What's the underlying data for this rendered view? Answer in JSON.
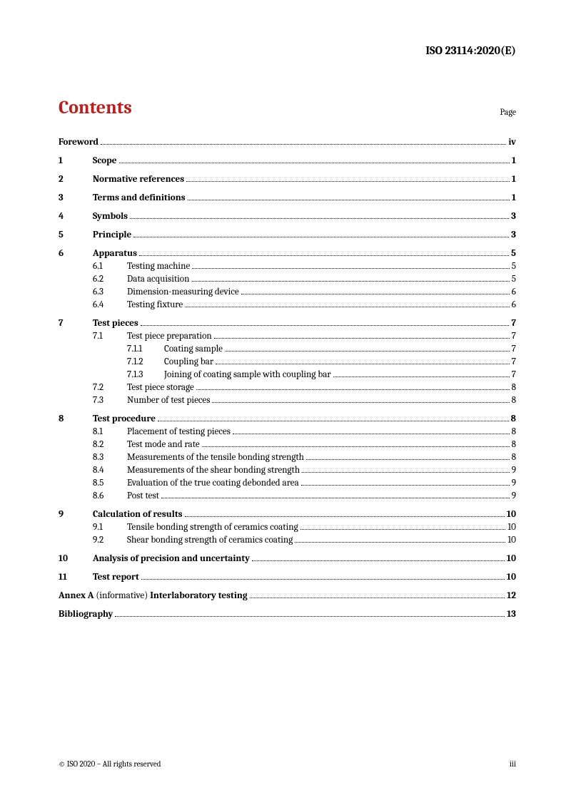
{
  "doc_id": "ISO 23114:2020(E)",
  "title": "Contents",
  "page_label": "Page",
  "footer_left": "© ISO 2020 – All rights reserved",
  "footer_right": "iii",
  "colors": {
    "heading": "#b22222",
    "text": "#000000",
    "background": "#ffffff",
    "leader": "#000000"
  },
  "typography": {
    "title_fontsize": 26,
    "body_fontsize": 13.2,
    "footer_fontsize": 11,
    "docid_fontsize": 16,
    "font_family": "Cambria, Georgia, serif"
  },
  "toc": [
    {
      "level": 0,
      "num": "",
      "title": "Foreword",
      "title_bold": true,
      "page": "iv",
      "page_bold": true,
      "gap_after": true
    },
    {
      "level": 1,
      "num": "1",
      "title": "Scope",
      "title_bold": true,
      "page": "1",
      "page_bold": true,
      "gap_after": true
    },
    {
      "level": 1,
      "num": "2",
      "title": "Normative references",
      "title_bold": true,
      "page": "1",
      "page_bold": true,
      "gap_after": true
    },
    {
      "level": 1,
      "num": "3",
      "title": "Terms and definitions",
      "title_bold": true,
      "page": "1",
      "page_bold": true,
      "gap_after": true
    },
    {
      "level": 1,
      "num": "4",
      "title": "Symbols",
      "title_bold": true,
      "page": "3",
      "page_bold": true,
      "gap_after": true
    },
    {
      "level": 1,
      "num": "5",
      "title": "Principle",
      "title_bold": true,
      "page": "3",
      "page_bold": true,
      "gap_after": true
    },
    {
      "level": 1,
      "num": "6",
      "title": "Apparatus",
      "title_bold": true,
      "page": "5",
      "page_bold": true
    },
    {
      "level": 2,
      "num": "6.1",
      "title": "Testing machine",
      "page": "5"
    },
    {
      "level": 2,
      "num": "6.2",
      "title": "Data acquisition",
      "page": "5"
    },
    {
      "level": 2,
      "num": "6.3",
      "title": "Dimension-measuring device",
      "page": "6"
    },
    {
      "level": 2,
      "num": "6.4",
      "title": "Testing fixture",
      "page": "6",
      "gap_after": true
    },
    {
      "level": 1,
      "num": "7",
      "title": "Test pieces",
      "title_bold": true,
      "page": "7",
      "page_bold": true
    },
    {
      "level": 2,
      "num": "7.1",
      "title": "Test piece preparation",
      "page": "7"
    },
    {
      "level": 3,
      "num": "7.1.1",
      "title": "Coating sample",
      "page": "7"
    },
    {
      "level": 3,
      "num": "7.1.2",
      "title": "Coupling bar",
      "page": "7"
    },
    {
      "level": 3,
      "num": "7.1.3",
      "title": "Joining of coating sample with coupling bar",
      "page": "7"
    },
    {
      "level": 2,
      "num": "7.2",
      "title": "Test piece storage",
      "page": "8"
    },
    {
      "level": 2,
      "num": "7.3",
      "title": "Number of test pieces",
      "page": "8",
      "gap_after": true
    },
    {
      "level": 1,
      "num": "8",
      "title": "Test procedure",
      "title_bold": true,
      "page": "8",
      "page_bold": true
    },
    {
      "level": 2,
      "num": "8.1",
      "title": "Placement of testing pieces",
      "page": "8"
    },
    {
      "level": 2,
      "num": "8.2",
      "title": "Test mode and rate",
      "page": "8"
    },
    {
      "level": 2,
      "num": "8.3",
      "title": "Measurements of the tensile bonding strength",
      "page": "8"
    },
    {
      "level": 2,
      "num": "8.4",
      "title": "Measurements of the shear bonding strength",
      "page": "9"
    },
    {
      "level": 2,
      "num": "8.5",
      "title": "Evaluation of the true coating debonded area",
      "page": "9"
    },
    {
      "level": 2,
      "num": "8.6",
      "title": "Post test",
      "page": "9",
      "gap_after": true
    },
    {
      "level": 1,
      "num": "9",
      "title": "Calculation of results",
      "title_bold": true,
      "page": "10",
      "page_bold": true
    },
    {
      "level": 2,
      "num": "9.1",
      "title": "Tensile bonding strength of ceramics coating",
      "page": "10"
    },
    {
      "level": 2,
      "num": "9.2",
      "title": "Shear bonding strength of ceramics coating",
      "page": "10",
      "gap_after": true
    },
    {
      "level": 1,
      "num": "10",
      "title": "Analysis of precision and uncertainty",
      "title_bold": true,
      "page": "10",
      "page_bold": true,
      "gap_after": true
    },
    {
      "level": 1,
      "num": "11",
      "title": "Test report",
      "title_bold": true,
      "page": "10",
      "page_bold": true,
      "gap_after": true
    },
    {
      "level": 0,
      "num": "",
      "title_html": "<span class='bold'>Annex A</span> <span class='normal'>(informative)</span> <span class='bold'>Interlaboratory testing</span>",
      "page": "12",
      "page_bold": true,
      "gap_after": true
    },
    {
      "level": 0,
      "num": "",
      "title": "Bibliography",
      "title_bold": true,
      "page": "13",
      "page_bold": true
    }
  ]
}
